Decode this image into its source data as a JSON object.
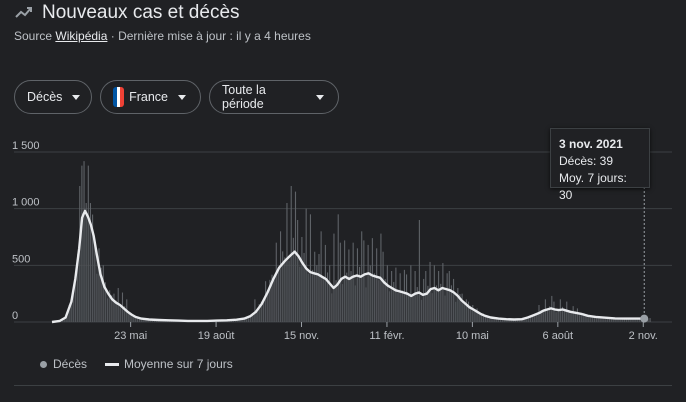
{
  "header": {
    "icon": "trending-line-icon",
    "title": "Nouveaux cas et décès",
    "source_prefix": "Source",
    "source_link": "Wikipédia",
    "updated": "· Dernière mise à jour : il y a 4 heures"
  },
  "controls": {
    "metric": "Décès",
    "country": "France",
    "period": "Toute la période"
  },
  "tooltip": {
    "date": "3 nov. 2021",
    "daily_line": "Décès: 39",
    "avg_line": "Moy. 7 jours: 30"
  },
  "legend": {
    "daily": "Décès",
    "avg": "Moyenne sur 7 jours"
  },
  "colors": {
    "background": "#202124",
    "bars": "#5f6368",
    "area": "#45484d",
    "line": "#e8eaed",
    "grid": "#3c4043"
  },
  "chart_data": {
    "type": "bar",
    "y_ticks": [
      "0",
      "500",
      "1 000",
      "1 500"
    ],
    "y_tick_values": [
      0,
      500,
      1000,
      1500
    ],
    "ylim": [
      0,
      1500
    ],
    "x_ticks": [
      "23 mai",
      "19 août",
      "15 nov.",
      "11 févr.",
      "10 mai",
      "6 août",
      "2 nov."
    ],
    "x_tick_positions": [
      81,
      169,
      257,
      345,
      433,
      521,
      609
    ],
    "x_range": [
      0,
      618
    ],
    "selected_x": 610,
    "series": [
      {
        "name": "Moyenne sur 7 jours",
        "kind": "line",
        "points": [
          [
            0,
            0
          ],
          [
            8,
            10
          ],
          [
            14,
            40
          ],
          [
            20,
            180
          ],
          [
            24,
            380
          ],
          [
            28,
            650
          ],
          [
            31,
            920
          ],
          [
            34,
            980
          ],
          [
            37,
            930
          ],
          [
            40,
            860
          ],
          [
            43,
            760
          ],
          [
            46,
            600
          ],
          [
            50,
            420
          ],
          [
            54,
            310
          ],
          [
            58,
            250
          ],
          [
            62,
            200
          ],
          [
            66,
            170
          ],
          [
            70,
            150
          ],
          [
            74,
            120
          ],
          [
            78,
            90
          ],
          [
            82,
            65
          ],
          [
            86,
            45
          ],
          [
            92,
            30
          ],
          [
            100,
            22
          ],
          [
            110,
            18
          ],
          [
            120,
            15
          ],
          [
            130,
            12
          ],
          [
            140,
            10
          ],
          [
            150,
            10
          ],
          [
            160,
            10
          ],
          [
            170,
            12
          ],
          [
            180,
            15
          ],
          [
            190,
            20
          ],
          [
            198,
            30
          ],
          [
            204,
            50
          ],
          [
            210,
            90
          ],
          [
            216,
            160
          ],
          [
            222,
            260
          ],
          [
            228,
            380
          ],
          [
            234,
            480
          ],
          [
            240,
            540
          ],
          [
            246,
            590
          ],
          [
            250,
            620
          ],
          [
            254,
            580
          ],
          [
            258,
            520
          ],
          [
            262,
            470
          ],
          [
            266,
            440
          ],
          [
            270,
            430
          ],
          [
            274,
            420
          ],
          [
            278,
            400
          ],
          [
            282,
            380
          ],
          [
            286,
            340
          ],
          [
            290,
            300
          ],
          [
            294,
            330
          ],
          [
            298,
            380
          ],
          [
            302,
            400
          ],
          [
            306,
            380
          ],
          [
            310,
            400
          ],
          [
            314,
            410
          ],
          [
            318,
            400
          ],
          [
            322,
            420
          ],
          [
            326,
            430
          ],
          [
            330,
            410
          ],
          [
            334,
            400
          ],
          [
            338,
            390
          ],
          [
            342,
            350
          ],
          [
            346,
            320
          ],
          [
            350,
            300
          ],
          [
            354,
            280
          ],
          [
            358,
            270
          ],
          [
            362,
            260
          ],
          [
            366,
            250
          ],
          [
            370,
            230
          ],
          [
            374,
            250
          ],
          [
            378,
            260
          ],
          [
            382,
            240
          ],
          [
            386,
            250
          ],
          [
            390,
            290
          ],
          [
            394,
            300
          ],
          [
            398,
            280
          ],
          [
            402,
            300
          ],
          [
            406,
            290
          ],
          [
            410,
            280
          ],
          [
            414,
            260
          ],
          [
            418,
            230
          ],
          [
            422,
            190
          ],
          [
            426,
            160
          ],
          [
            430,
            130
          ],
          [
            434,
            110
          ],
          [
            438,
            90
          ],
          [
            442,
            70
          ],
          [
            446,
            55
          ],
          [
            452,
            40
          ],
          [
            460,
            30
          ],
          [
            468,
            25
          ],
          [
            476,
            22
          ],
          [
            484,
            25
          ],
          [
            490,
            40
          ],
          [
            496,
            60
          ],
          [
            502,
            80
          ],
          [
            506,
            100
          ],
          [
            510,
            110
          ],
          [
            514,
            120
          ],
          [
            518,
            110
          ],
          [
            522,
            105
          ],
          [
            526,
            110
          ],
          [
            530,
            100
          ],
          [
            534,
            90
          ],
          [
            540,
            80
          ],
          [
            546,
            70
          ],
          [
            552,
            55
          ],
          [
            560,
            45
          ],
          [
            570,
            38
          ],
          [
            580,
            32
          ],
          [
            590,
            30
          ],
          [
            600,
            30
          ],
          [
            610,
            30
          ]
        ]
      },
      {
        "name": "Décès",
        "kind": "bars",
        "peaks": [
          [
            28,
            1200
          ],
          [
            30,
            1380
          ],
          [
            32,
            1200
          ],
          [
            34,
            1420
          ],
          [
            36,
            1050
          ],
          [
            38,
            1380
          ],
          [
            40,
            800
          ],
          [
            44,
            700
          ],
          [
            48,
            650
          ],
          [
            52,
            500
          ],
          [
            56,
            350
          ],
          [
            60,
            280
          ],
          [
            64,
            250
          ],
          [
            68,
            300
          ],
          [
            72,
            260
          ],
          [
            76,
            200
          ],
          [
            210,
            200
          ],
          [
            220,
            360
          ],
          [
            230,
            700
          ],
          [
            236,
            800
          ],
          [
            242,
            1050
          ],
          [
            246,
            1200
          ],
          [
            250,
            1150
          ],
          [
            254,
            900
          ],
          [
            258,
            750
          ],
          [
            262,
            1000
          ],
          [
            266,
            950
          ],
          [
            270,
            620
          ],
          [
            274,
            600
          ],
          [
            278,
            800
          ],
          [
            282,
            680
          ],
          [
            286,
            500
          ],
          [
            290,
            780
          ],
          [
            294,
            950
          ],
          [
            298,
            700
          ],
          [
            302,
            720
          ],
          [
            306,
            640
          ],
          [
            310,
            700
          ],
          [
            314,
            650
          ],
          [
            318,
            800
          ],
          [
            322,
            720
          ],
          [
            326,
            680
          ],
          [
            330,
            740
          ],
          [
            334,
            650
          ],
          [
            338,
            780
          ],
          [
            342,
            620
          ],
          [
            346,
            500
          ],
          [
            350,
            450
          ],
          [
            354,
            480
          ],
          [
            358,
            430
          ],
          [
            362,
            460
          ],
          [
            366,
            420
          ],
          [
            370,
            500
          ],
          [
            374,
            450
          ],
          [
            378,
            900
          ],
          [
            382,
            380
          ],
          [
            386,
            450
          ],
          [
            390,
            530
          ],
          [
            394,
            500
          ],
          [
            398,
            450
          ],
          [
            402,
            520
          ],
          [
            406,
            430
          ],
          [
            410,
            450
          ],
          [
            414,
            380
          ],
          [
            418,
            300
          ],
          [
            422,
            250
          ],
          [
            426,
            200
          ],
          [
            430,
            180
          ],
          [
            434,
            150
          ],
          [
            438,
            120
          ],
          [
            502,
            150
          ],
          [
            508,
            200
          ],
          [
            514,
            230
          ],
          [
            518,
            180
          ],
          [
            524,
            200
          ],
          [
            530,
            180
          ],
          [
            536,
            140
          ],
          [
            542,
            120
          ]
        ]
      }
    ]
  }
}
